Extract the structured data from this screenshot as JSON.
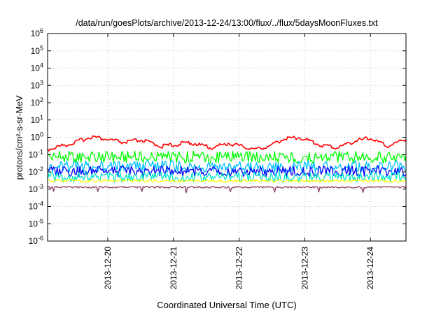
{
  "chart_data": {
    "type": "line",
    "title": "/data/run/goesPlots/archive/2013-12-24/13:00/flux/../flux/5daysMoonFluxes.txt",
    "xlabel": "Coordinated Universal Time (UTC)",
    "ylabel": "protons/cm²-s-sr-MeV",
    "x_range": [
      "2013-12-19T02:00",
      "2013-12-24T13:00"
    ],
    "x_ticks": [
      "2013-12-20",
      "2013-12-21",
      "2013-12-22",
      "2013-12-23",
      "2013-12-24"
    ],
    "y_scale": "log",
    "ylim": [
      1e-06,
      1000000.0
    ],
    "y_ticks": [
      {
        "base": "10",
        "exp": "-6",
        "value": 1e-06
      },
      {
        "base": "10",
        "exp": "-5",
        "value": 1e-05
      },
      {
        "base": "10",
        "exp": "-4",
        "value": 0.0001
      },
      {
        "base": "10",
        "exp": "-3",
        "value": 0.001
      },
      {
        "base": "10",
        "exp": "-2",
        "value": 0.01
      },
      {
        "base": "10",
        "exp": "-1",
        "value": 0.1
      },
      {
        "base": "10",
        "exp": "0",
        "value": 1
      },
      {
        "base": "10",
        "exp": "1",
        "value": 10
      },
      {
        "base": "10",
        "exp": "2",
        "value": 100
      },
      {
        "base": "10",
        "exp": "3",
        "value": 1000
      },
      {
        "base": "10",
        "exp": "4",
        "value": 10000
      },
      {
        "base": "10",
        "exp": "5",
        "value": 100000
      },
      {
        "base": "10",
        "exp": "6",
        "value": 1000000
      }
    ],
    "grid": true,
    "series": [
      {
        "color": "#ff0000",
        "x": [
          "2013-12-19T02:00",
          "2013-12-19T12:00",
          "2013-12-19T18:00",
          "2013-12-20T06:00",
          "2013-12-20T12:00",
          "2013-12-20T20:00",
          "2013-12-21T06:00",
          "2013-12-21T14:00",
          "2013-12-21T20:00",
          "2013-12-22T06:00",
          "2013-12-22T12:00",
          "2013-12-22T16:00",
          "2013-12-22T22:00",
          "2013-12-23T06:00",
          "2013-12-23T12:00",
          "2013-12-23T18:00",
          "2013-12-24T00:00",
          "2013-12-24T06:00",
          "2013-12-24T13:00"
        ],
        "y": [
          0.2,
          0.5,
          1.1,
          0.5,
          0.7,
          0.3,
          0.5,
          0.25,
          0.45,
          0.2,
          0.35,
          0.8,
          1.0,
          0.35,
          0.25,
          0.6,
          0.9,
          0.3,
          0.8
        ]
      },
      {
        "color": "#00ff00",
        "x": [
          "2013-12-19T02:00",
          "2013-12-24T13:00"
        ],
        "y": [
          0.07,
          0.07
        ]
      },
      {
        "color": "#00bfff",
        "x": [
          "2013-12-19T02:00",
          "2013-12-24T13:00"
        ],
        "y": [
          0.02,
          0.02
        ]
      },
      {
        "color": "#0000ff",
        "x": [
          "2013-12-19T02:00",
          "2013-12-24T13:00"
        ],
        "y": [
          0.011,
          0.011
        ]
      },
      {
        "color": "#00e5cc",
        "x": [
          "2013-12-19T02:00",
          "2013-12-24T13:00"
        ],
        "y": [
          0.005,
          0.005
        ]
      },
      {
        "color": "#ffff00",
        "x": [
          "2013-12-19T02:00",
          "2013-12-24T13:00"
        ],
        "y": [
          0.003,
          0.003
        ]
      },
      {
        "color": "#8b3a62",
        "x": [
          "2013-12-19T02:00",
          "2013-12-24T13:00"
        ],
        "y": [
          0.0013,
          0.0013
        ]
      }
    ]
  }
}
